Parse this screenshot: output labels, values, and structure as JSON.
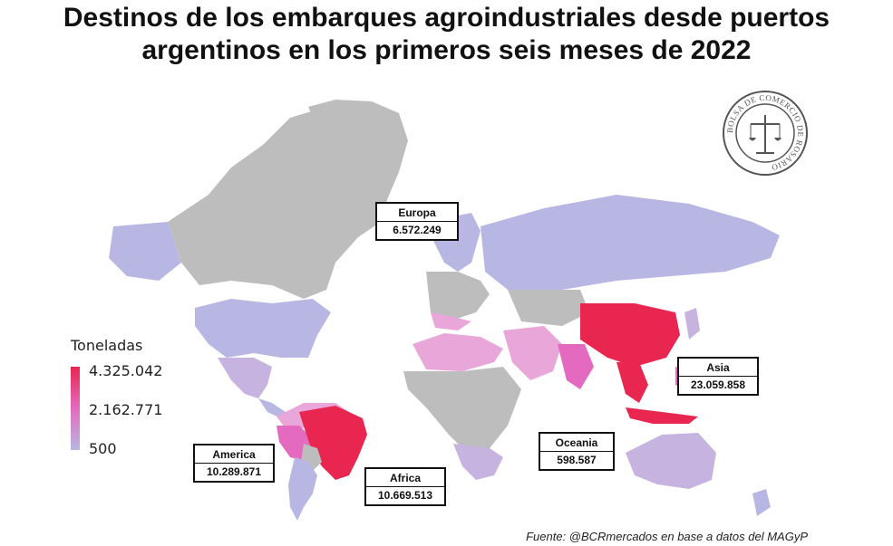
{
  "title": {
    "line1": "Destinos de los embarques agroindustriales desde puertos",
    "line2": "argentinos en los primeros seis meses de 2022"
  },
  "legend": {
    "title": "Toneladas",
    "max": "4.325.042",
    "mid": "2.162.771",
    "min": "500",
    "colors": {
      "high": "#e8264f",
      "mid": "#e46ac0",
      "low": "#b8b7e3",
      "no_data": "#bdbdbd"
    }
  },
  "regions": [
    {
      "key": "europa",
      "name": "Europa",
      "value": "6.572.249"
    },
    {
      "key": "asia",
      "name": "Asia",
      "value": "23.059.858"
    },
    {
      "key": "oceania",
      "name": "Oceania",
      "value": "598.587"
    },
    {
      "key": "africa",
      "name": "Africa",
      "value": "10.669.513"
    },
    {
      "key": "america",
      "name": "America",
      "value": "10.289.871"
    }
  ],
  "logo": {
    "text": "BOLSA DE COMERCIO DE ROSARIO"
  },
  "source": "Fuente: @BCRmercados en base a datos del MAGyP"
}
